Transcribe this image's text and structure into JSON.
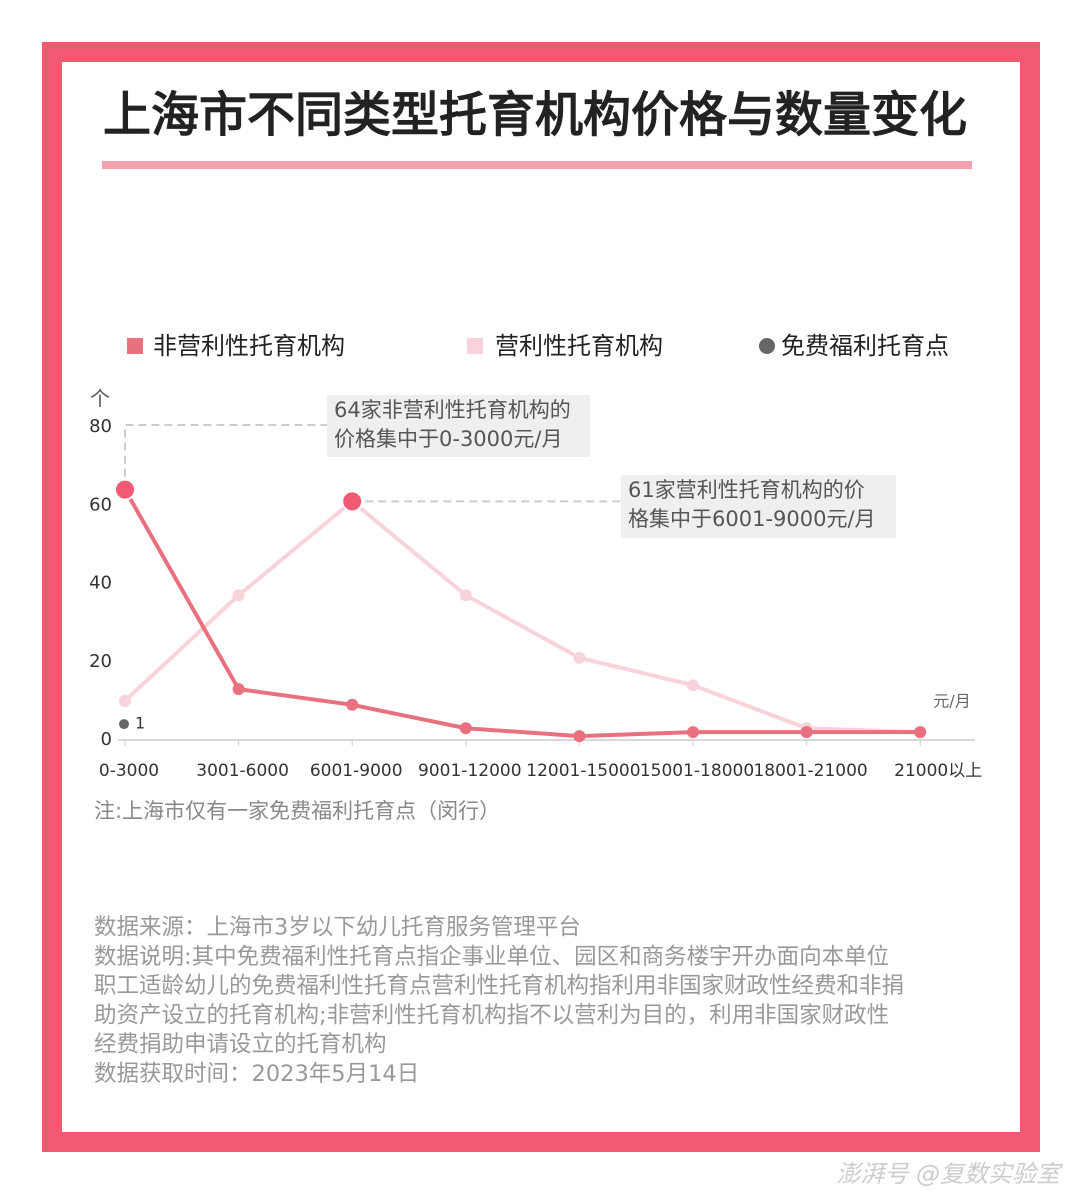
{
  "chart_data": {
    "type": "line",
    "title": "上海市不同类型托育机构价格与数量变化",
    "y_unit": "个",
    "x_unit": "元/月",
    "categories": [
      "0-3000",
      "3001-6000",
      "6001-9000",
      "9001-12000",
      "12001-15000",
      "15001-18000",
      "18001-21000",
      "21000以上"
    ],
    "series": [
      {
        "name": "非营利性托育机构",
        "color": "#e8707f",
        "values": [
          64,
          13,
          9,
          3,
          1,
          2,
          2,
          2
        ]
      },
      {
        "name": "营利性托育机构",
        "color": "#f8d3da",
        "values": [
          10,
          37,
          61,
          37,
          21,
          14,
          3,
          2
        ]
      },
      {
        "name": "免费福利托育点",
        "color": "#666666",
        "values": [
          1,
          null,
          null,
          null,
          null,
          null,
          null,
          null
        ]
      }
    ],
    "ylim": [
      0,
      80
    ],
    "yticks": [
      0,
      20,
      40,
      60,
      80
    ],
    "annotations": [
      {
        "lines": [
          "64家非营利性托育机构的",
          "价格集中于0-3000元/月"
        ]
      },
      {
        "lines": [
          "61家营利性托育机构的价",
          "格集中于6001-9000元/月"
        ]
      }
    ],
    "note": "注:上海市仅有一家免费福利托育点（闵行）",
    "source_lines": [
      "数据来源：上海市3岁以下幼儿托育服务管理平台",
      "数据说明:其中免费福利性托育点指企事业单位、园区和商务楼宇开办面向本单位",
      "职工适龄幼儿的免费福利性托育点营利性托育机构指利用非国家财政性经费和非捐",
      "助资产设立的托育机构;非营利性托育机构指不以营利为目的，利用非国家财政性",
      "经费捐助申请设立的托育机构",
      "数据获取时间：2023年5月14日"
    ],
    "watermark": "澎湃号 @复数实验室"
  }
}
